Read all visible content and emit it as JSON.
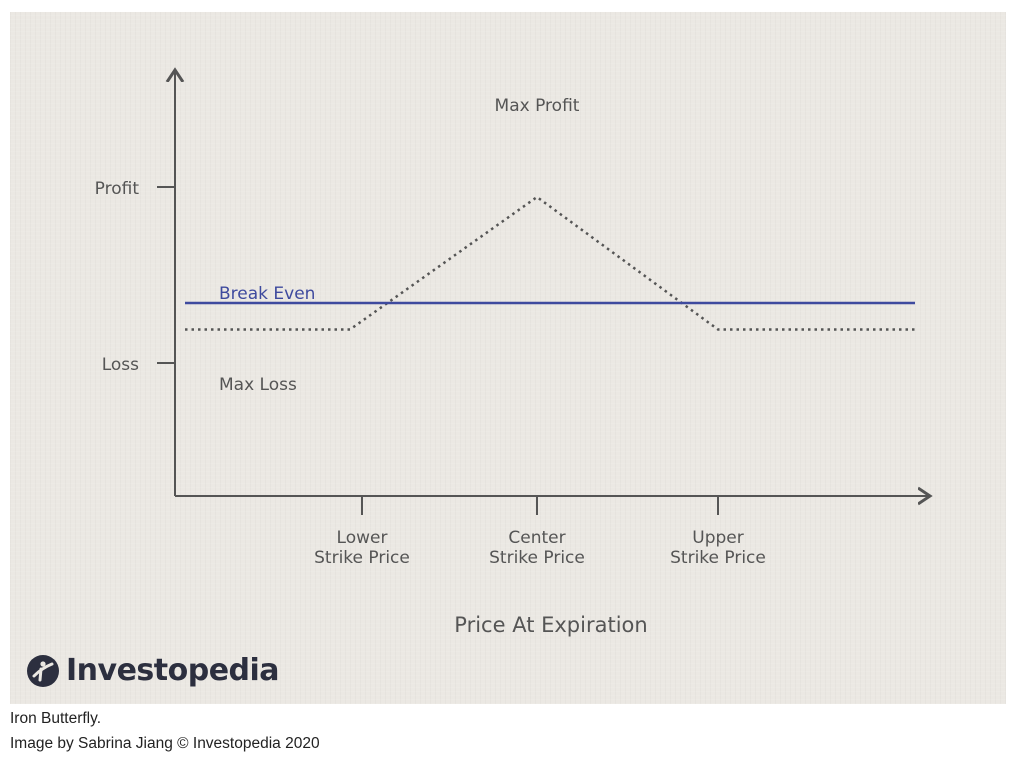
{
  "chart_data": {
    "type": "line",
    "xlabel": "Price At Expiration",
    "x_ticks": [
      "Lower\nStrike Price",
      "Center\nStrike Price",
      "Upper\nStrike Price"
    ],
    "y_ticks": [
      "Profit",
      "Loss"
    ],
    "series": [
      {
        "style": "dotted",
        "color": "#555555",
        "x": [
          0,
          1,
          2,
          3,
          4
        ],
        "y": [
          -1,
          -1,
          4,
          -1,
          -1
        ]
      },
      {
        "name": "Break Even",
        "style": "solid",
        "color": "#3e4a9e",
        "x": [
          0,
          4
        ],
        "y": [
          0,
          0
        ]
      }
    ],
    "annotations": [
      "Max Profit",
      "Break Even",
      "Max Loss"
    ],
    "grid": false
  },
  "logo_text": "Investopedia",
  "caption": {
    "line1": "Iron Butterfly.",
    "line2": "Image by Sabrina Jiang © Investopedia 2020"
  }
}
